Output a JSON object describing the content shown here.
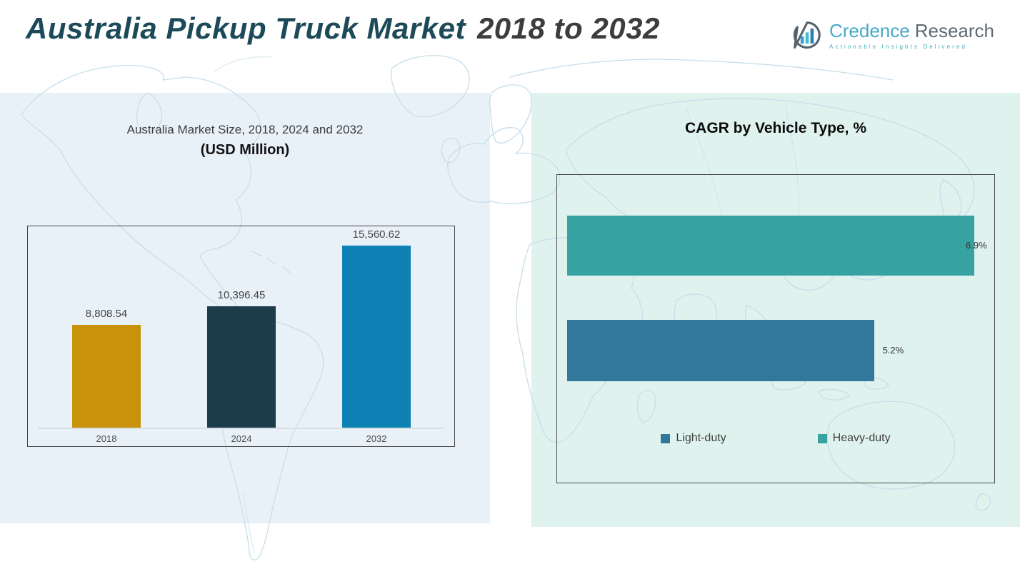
{
  "header": {
    "title_main": "Australia Pickup Truck Market",
    "title_range": "2018 to 2032",
    "logo": {
      "brand_primary": "Credence",
      "brand_secondary": "Research",
      "tagline": "Actionable Insights Delivered",
      "icon": "bar-chart-bubble-icon"
    }
  },
  "colors": {
    "title_teal": "#1d4a58",
    "title_gray": "#3d3d40",
    "panel_left_bg": "#e9f1f8",
    "panel_right_bg": "#e0f2ee",
    "map_line": "#c6deea",
    "chart_border": "#454545",
    "axis_line": "#d9dee2"
  },
  "chart_data": [
    {
      "type": "bar",
      "orientation": "vertical",
      "title": "Australia Market Size, 2018, 2024 and 2032",
      "subtitle": "(USD Million)",
      "unit": "USD Million",
      "categories": [
        "2018",
        "2024",
        "2032"
      ],
      "values": [
        8808.54,
        10396.45,
        15560.62
      ],
      "value_labels": [
        "8,808.54",
        "10,396.45",
        "15,560.62"
      ],
      "bar_colors": [
        "#c8930b",
        "#1d3c49",
        "#0e82b4"
      ],
      "ylim": [
        0,
        15560.62
      ],
      "grid": false,
      "legend_position": "none"
    },
    {
      "type": "bar",
      "orientation": "horizontal",
      "title": "CAGR by Vehicle Type, %",
      "categories": [
        "Heavy-duty",
        "Light-duty"
      ],
      "values": [
        6.9,
        5.2
      ],
      "value_labels": [
        "6.9%",
        "5.2%"
      ],
      "bar_colors": [
        "#36a2a2",
        "#31789c"
      ],
      "xlim": [
        0,
        7.4
      ],
      "grid": false,
      "legend_position": "bottom",
      "legend": [
        {
          "label": "Light-duty",
          "color": "#31789c"
        },
        {
          "label": "Heavy-duty",
          "color": "#36a2a2"
        }
      ]
    }
  ]
}
